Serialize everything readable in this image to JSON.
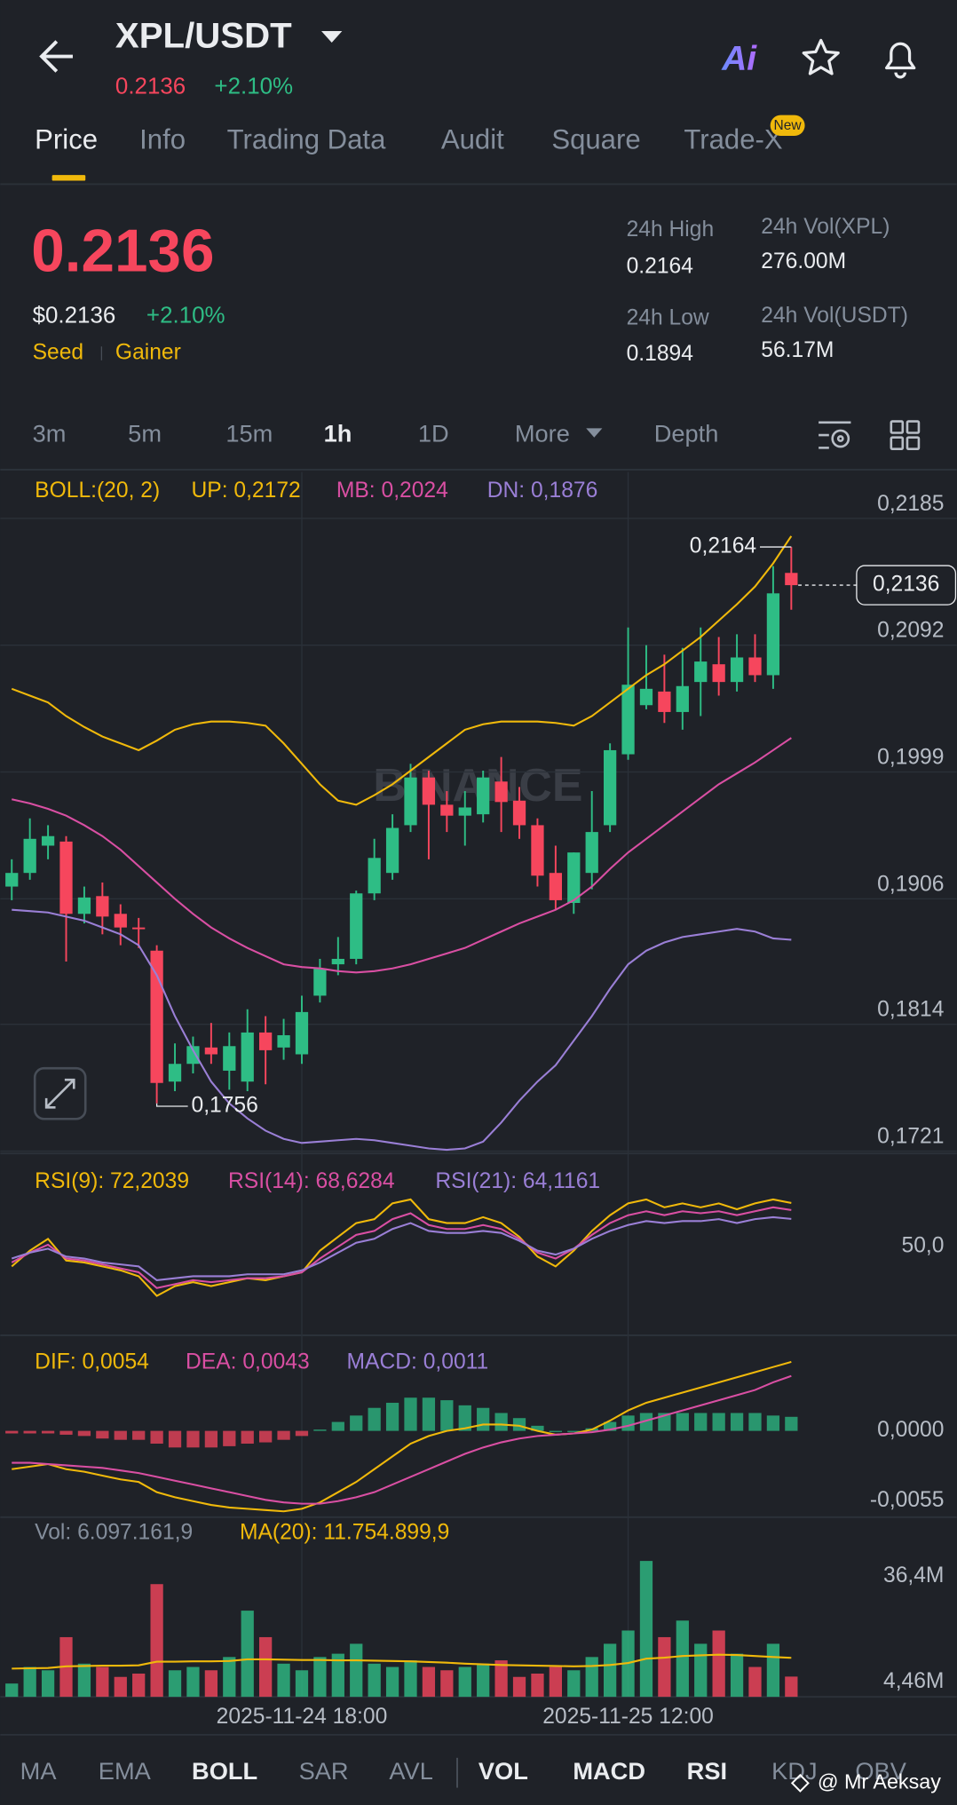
{
  "header": {
    "pair": "XPL/USDT",
    "price": "0.2136",
    "change": "+2.10%",
    "tabs": [
      "Price",
      "Info",
      "Trading Data",
      "Audit",
      "Square",
      "Trade-X"
    ],
    "badge": "New"
  },
  "summary": {
    "price": "0.2136",
    "usd_price": "$0.2136",
    "change": "+2.10%",
    "tags": [
      "Seed",
      "Gainer"
    ],
    "stats": [
      {
        "label": "24h High",
        "value": "0.2164"
      },
      {
        "label": "24h Low",
        "value": "0.1894"
      },
      {
        "label": "24h Vol(XPL)",
        "value": "276.00M"
      },
      {
        "label": "24h Vol(USDT)",
        "value": "56.17M"
      }
    ]
  },
  "intervals": [
    "3m",
    "5m",
    "15m",
    "1h",
    "1D",
    "More",
    "Depth"
  ],
  "chart_data": {
    "type": "candlestick",
    "watermark": "BINANCE",
    "categories": [
      null,
      null,
      null,
      null,
      null,
      null,
      null,
      null,
      null,
      null,
      null,
      null,
      null,
      null,
      null,
      null,
      "2025-11-24 18:00",
      null,
      null,
      null,
      null,
      null,
      null,
      null,
      null,
      null,
      null,
      null,
      null,
      null,
      null,
      null,
      null,
      null,
      "2025-11-25 12:00",
      null,
      null,
      null,
      null,
      null,
      null,
      null,
      null,
      null
    ],
    "open": [
      0.1915,
      0.1925,
      0.1945,
      0.1948,
      0.1895,
      0.1908,
      0.1895,
      0.1885,
      0.1868,
      0.1772,
      0.1785,
      0.1797,
      0.178,
      0.1772,
      0.1808,
      0.1797,
      0.1792,
      0.1835,
      0.1858,
      0.1862,
      0.191,
      0.1925,
      0.196,
      0.1995,
      0.1975,
      0.1967,
      0.1968,
      0.1992,
      0.1978,
      0.196,
      0.1925,
      0.1903,
      0.1925,
      0.196,
      0.2012,
      0.2048,
      0.2058,
      0.2043,
      0.2065,
      0.2078,
      0.2065,
      0.2083,
      0.207,
      0.2145
    ],
    "high": [
      0.1935,
      0.1965,
      0.196,
      0.1952,
      0.1915,
      0.1918,
      0.1902,
      0.1892,
      0.1872,
      0.18,
      0.1805,
      0.1815,
      0.1808,
      0.1825,
      0.182,
      0.1818,
      0.1835,
      0.1862,
      0.1878,
      0.1912,
      0.195,
      0.1968,
      0.2005,
      0.2,
      0.1985,
      0.1985,
      0.2,
      0.201,
      0.1988,
      0.1965,
      0.1945,
      0.194,
      0.1985,
      0.202,
      0.2105,
      0.2092,
      0.2085,
      0.209,
      0.2105,
      0.2098,
      0.21,
      0.21,
      0.215,
      0.2164
    ],
    "low": [
      0.1905,
      0.192,
      0.1935,
      0.186,
      0.1888,
      0.188,
      0.1872,
      0.187,
      0.1756,
      0.1765,
      0.1778,
      0.1785,
      0.1766,
      0.1765,
      0.177,
      0.1788,
      0.1785,
      0.183,
      0.185,
      0.1858,
      0.1905,
      0.192,
      0.1955,
      0.1935,
      0.1955,
      0.1945,
      0.1962,
      0.1955,
      0.195,
      0.1915,
      0.1898,
      0.1895,
      0.1913,
      0.1955,
      0.2008,
      0.2045,
      0.2035,
      0.203,
      0.204,
      0.2055,
      0.2058,
      0.2065,
      0.206,
      0.2118
    ],
    "close": [
      0.1925,
      0.195,
      0.1952,
      0.1895,
      0.1907,
      0.1893,
      0.1885,
      0.1884,
      0.1771,
      0.1785,
      0.1798,
      0.1792,
      0.1798,
      0.1808,
      0.1795,
      0.1806,
      0.1823,
      0.1855,
      0.1862,
      0.191,
      0.1936,
      0.1958,
      0.1995,
      0.1975,
      0.1967,
      0.1973,
      0.1995,
      0.1977,
      0.196,
      0.1923,
      0.1905,
      0.194,
      0.1955,
      0.2015,
      0.2063,
      0.206,
      0.2043,
      0.2062,
      0.208,
      0.2065,
      0.2083,
      0.207,
      0.213,
      0.2136
    ],
    "up_color": "#2ebd85",
    "down_color": "#f6465d",
    "ylim": [
      0.1721,
      0.2219
    ],
    "yticks": [
      {
        "value": 0.2185,
        "label": "0,2185"
      },
      {
        "value": 0.2092,
        "label": "0,2092"
      },
      {
        "value": 0.1999,
        "label": "0,1999"
      },
      {
        "value": 0.1906,
        "label": "0,1906"
      },
      {
        "value": 0.1814,
        "label": "0,1814"
      },
      {
        "value": 0.1721,
        "label": "0,1721"
      }
    ],
    "grid": true,
    "high_label": {
      "value": 0.2164,
      "label": "0,2164"
    },
    "low_label": {
      "value": 0.1756,
      "label": "0,1756"
    },
    "last_price": {
      "value": 0.2136,
      "label": "0,2136"
    },
    "boll": {
      "title": "BOLL:(20, 2)",
      "series": [
        {
          "name": "UP: 0,2172",
          "color": "#f0b90b",
          "values": [
            0.206,
            0.2055,
            0.205,
            0.204,
            0.2032,
            0.2025,
            0.202,
            0.2015,
            0.2022,
            0.203,
            0.2034,
            0.2036,
            0.2036,
            0.2035,
            0.2033,
            0.202,
            0.2005,
            0.199,
            0.1978,
            0.1975,
            0.1982,
            0.199,
            0.2,
            0.201,
            0.202,
            0.203,
            0.2034,
            0.2036,
            0.2036,
            0.2036,
            0.2035,
            0.2033,
            0.204,
            0.205,
            0.206,
            0.207,
            0.2078,
            0.2088,
            0.2098,
            0.211,
            0.2122,
            0.2135,
            0.2152,
            0.2172
          ]
        },
        {
          "name": "MB: 0,2024",
          "color": "#d94fa3",
          "values": [
            0.1979,
            0.1976,
            0.1972,
            0.1967,
            0.196,
            0.1952,
            0.1942,
            0.193,
            0.1918,
            0.1906,
            0.1895,
            0.1885,
            0.1877,
            0.187,
            0.1864,
            0.1858,
            0.1856,
            0.1855,
            0.1853,
            0.1852,
            0.1853,
            0.1855,
            0.1858,
            0.1862,
            0.1866,
            0.187,
            0.1876,
            0.1882,
            0.1888,
            0.1893,
            0.1898,
            0.1905,
            0.1915,
            0.1928,
            0.194,
            0.195,
            0.196,
            0.197,
            0.198,
            0.199,
            0.1998,
            0.2006,
            0.2015,
            0.2024
          ]
        },
        {
          "name": "DN: 0,1876",
          "color": "#9a7fd6",
          "values": [
            0.1898,
            0.1897,
            0.1896,
            0.1893,
            0.189,
            0.1885,
            0.188,
            0.1872,
            0.185,
            0.182,
            0.1795,
            0.1772,
            0.1756,
            0.1745,
            0.1736,
            0.173,
            0.1727,
            0.1728,
            0.1729,
            0.173,
            0.1729,
            0.1727,
            0.1725,
            0.1723,
            0.1722,
            0.1723,
            0.1728,
            0.1742,
            0.1758,
            0.1772,
            0.1784,
            0.1802,
            0.182,
            0.184,
            0.1858,
            0.1868,
            0.1874,
            0.1878,
            0.188,
            0.1882,
            0.1884,
            0.1882,
            0.1877,
            0.1876
          ]
        }
      ]
    },
    "rsi": {
      "ylim": [
        5,
        95.6
      ],
      "yticks": [
        {
          "value": 50,
          "label": "50,0"
        }
      ],
      "series": [
        {
          "name": "RSI(9): 72,2039",
          "color": "#f0b90b",
          "values": [
            40,
            48,
            54,
            43,
            42,
            40,
            38,
            35,
            25,
            30,
            32,
            30,
            32,
            34,
            33,
            35,
            37,
            48,
            55,
            62,
            64,
            72,
            74,
            64,
            62,
            62,
            65,
            62,
            55,
            45,
            40,
            48,
            58,
            66,
            72,
            74,
            70,
            72,
            70,
            72,
            69,
            72,
            74,
            72.2039
          ]
        },
        {
          "name": "RSI(14): 68,6284",
          "color": "#d94fa3",
          "values": [
            42,
            47,
            51,
            44,
            43,
            41,
            39,
            37,
            29,
            31,
            33,
            32,
            33,
            34,
            34,
            35,
            37,
            44,
            50,
            56,
            58,
            64,
            67,
            61,
            59,
            59,
            61,
            59,
            54,
            47,
            44,
            49,
            56,
            62,
            66,
            68,
            66,
            68,
            67,
            68,
            66,
            68,
            70,
            68.6284
          ]
        },
        {
          "name": "RSI(21): 64,1161",
          "color": "#9a7fd6",
          "values": [
            44,
            47,
            49,
            45,
            44,
            42,
            41,
            40,
            33,
            34,
            35,
            35,
            35,
            36,
            36,
            36,
            38,
            42,
            47,
            52,
            54,
            59,
            62,
            58,
            57,
            57,
            58,
            57,
            53,
            48,
            46,
            49,
            54,
            58,
            61,
            63,
            62,
            63,
            63,
            64,
            62,
            64,
            65,
            64.1161
          ]
        }
      ]
    },
    "macd": {
      "ylim": [
        -0.00658,
        0.00703
      ],
      "yticks": [
        {
          "value": 0,
          "label": "0,0000"
        },
        {
          "value": -0.0055,
          "label": "-0,0055"
        }
      ],
      "series": [
        {
          "name": "DIF: 0,0054",
          "color": "#f0b90b",
          "values": [
            -0.003,
            -0.0028,
            -0.0026,
            -0.003,
            -0.0032,
            -0.0035,
            -0.0038,
            -0.004,
            -0.0048,
            -0.0052,
            -0.0055,
            -0.0058,
            -0.006,
            -0.0061,
            -0.0062,
            -0.0063,
            -0.0061,
            -0.0056,
            -0.0048,
            -0.004,
            -0.003,
            -0.002,
            -0.001,
            -0.0004,
            0.0,
            0.0002,
            0.0005,
            0.0005,
            0.0004,
            0.0,
            -0.0003,
            -0.0002,
            0.0001,
            0.0008,
            0.0016,
            0.0022,
            0.0026,
            0.003,
            0.0034,
            0.0038,
            0.0042,
            0.0046,
            0.005,
            0.0054
          ]
        },
        {
          "name": "DEA: 0,0043",
          "color": "#d94fa3",
          "values": [
            -0.0025,
            -0.0025,
            -0.0026,
            -0.0027,
            -0.0028,
            -0.0029,
            -0.0031,
            -0.0033,
            -0.0036,
            -0.0039,
            -0.0042,
            -0.0045,
            -0.0048,
            -0.0051,
            -0.0054,
            -0.0056,
            -0.0057,
            -0.0057,
            -0.0055,
            -0.0052,
            -0.0048,
            -0.0042,
            -0.0036,
            -0.003,
            -0.0024,
            -0.0018,
            -0.0013,
            -0.0009,
            -0.0006,
            -0.0004,
            -0.0003,
            -0.0002,
            -0.0001,
            0.0001,
            0.0004,
            0.0008,
            0.0012,
            0.0016,
            0.002,
            0.0024,
            0.0028,
            0.0032,
            0.0038,
            0.0043
          ]
        }
      ],
      "histogram": {
        "name": "MACD: 0,0011",
        "color": "#9a7fd6",
        "values": [
          -0.0002,
          -0.0002,
          -0.0002,
          -0.0003,
          -0.0004,
          -0.0006,
          -0.0007,
          -0.0007,
          -0.001,
          -0.0013,
          -0.0013,
          -0.0013,
          -0.0012,
          -0.001,
          -0.0009,
          -0.0007,
          -0.0004,
          0.0001,
          0.0007,
          0.0012,
          0.0018,
          0.0022,
          0.0026,
          0.0026,
          0.0024,
          0.002,
          0.0018,
          0.0014,
          0.001,
          0.0004,
          0.0,
          0.0,
          0.0002,
          0.0007,
          0.0012,
          0.0014,
          0.0014,
          0.0014,
          0.0014,
          0.0014,
          0.0014,
          0.0014,
          0.0012,
          0.0011
        ]
      }
    },
    "volume": {
      "name": "Vol: 6.097.161,9",
      "ylim": [
        0,
        53500000
      ],
      "yticks": [
        {
          "value": 36400000,
          "label": "36,4M"
        },
        {
          "value": 4460000,
          "label": "4,46M"
        }
      ],
      "values": [
        4000000,
        9000000,
        8000000,
        18000000,
        10000000,
        9000000,
        6000000,
        7000000,
        34000000,
        8000000,
        9000000,
        8000000,
        12000000,
        26000000,
        18000000,
        10000000,
        8000000,
        12000000,
        13000000,
        16000000,
        10000000,
        9000000,
        11000000,
        9000000,
        8000000,
        9000000,
        10000000,
        11000000,
        6000000,
        7000000,
        9000000,
        8000000,
        12000000,
        16000000,
        20000000,
        41000000,
        18000000,
        23000000,
        16000000,
        20000000,
        13000000,
        9000000,
        16000000,
        6097161.9
      ],
      "ma": {
        "name": "MA(20): 11.754.899,9",
        "color": "#f0b90b",
        "values": [
          8500000,
          8600000,
          8700000,
          9200000,
          9300000,
          9400000,
          9400000,
          9500000,
          10600000,
          10600000,
          10700000,
          10700000,
          10800000,
          11300000,
          11300000,
          11200000,
          11100000,
          11100000,
          11000000,
          11000000,
          10900000,
          10800000,
          10700000,
          10500000,
          10300000,
          10000000,
          9800000,
          9600000,
          9500000,
          9400000,
          9300000,
          9200000,
          9300000,
          9600000,
          10200000,
          11500000,
          11800000,
          12300000,
          12500000,
          12700000,
          12600000,
          12300000,
          12000000,
          11754899.9
        ]
      }
    }
  },
  "indicators": [
    "MA",
    "EMA",
    "BOLL",
    "SAR",
    "AVL",
    "VOL",
    "MACD",
    "RSI",
    "KDJ",
    "OBV"
  ],
  "watermark": "@ Mr Aeksay"
}
